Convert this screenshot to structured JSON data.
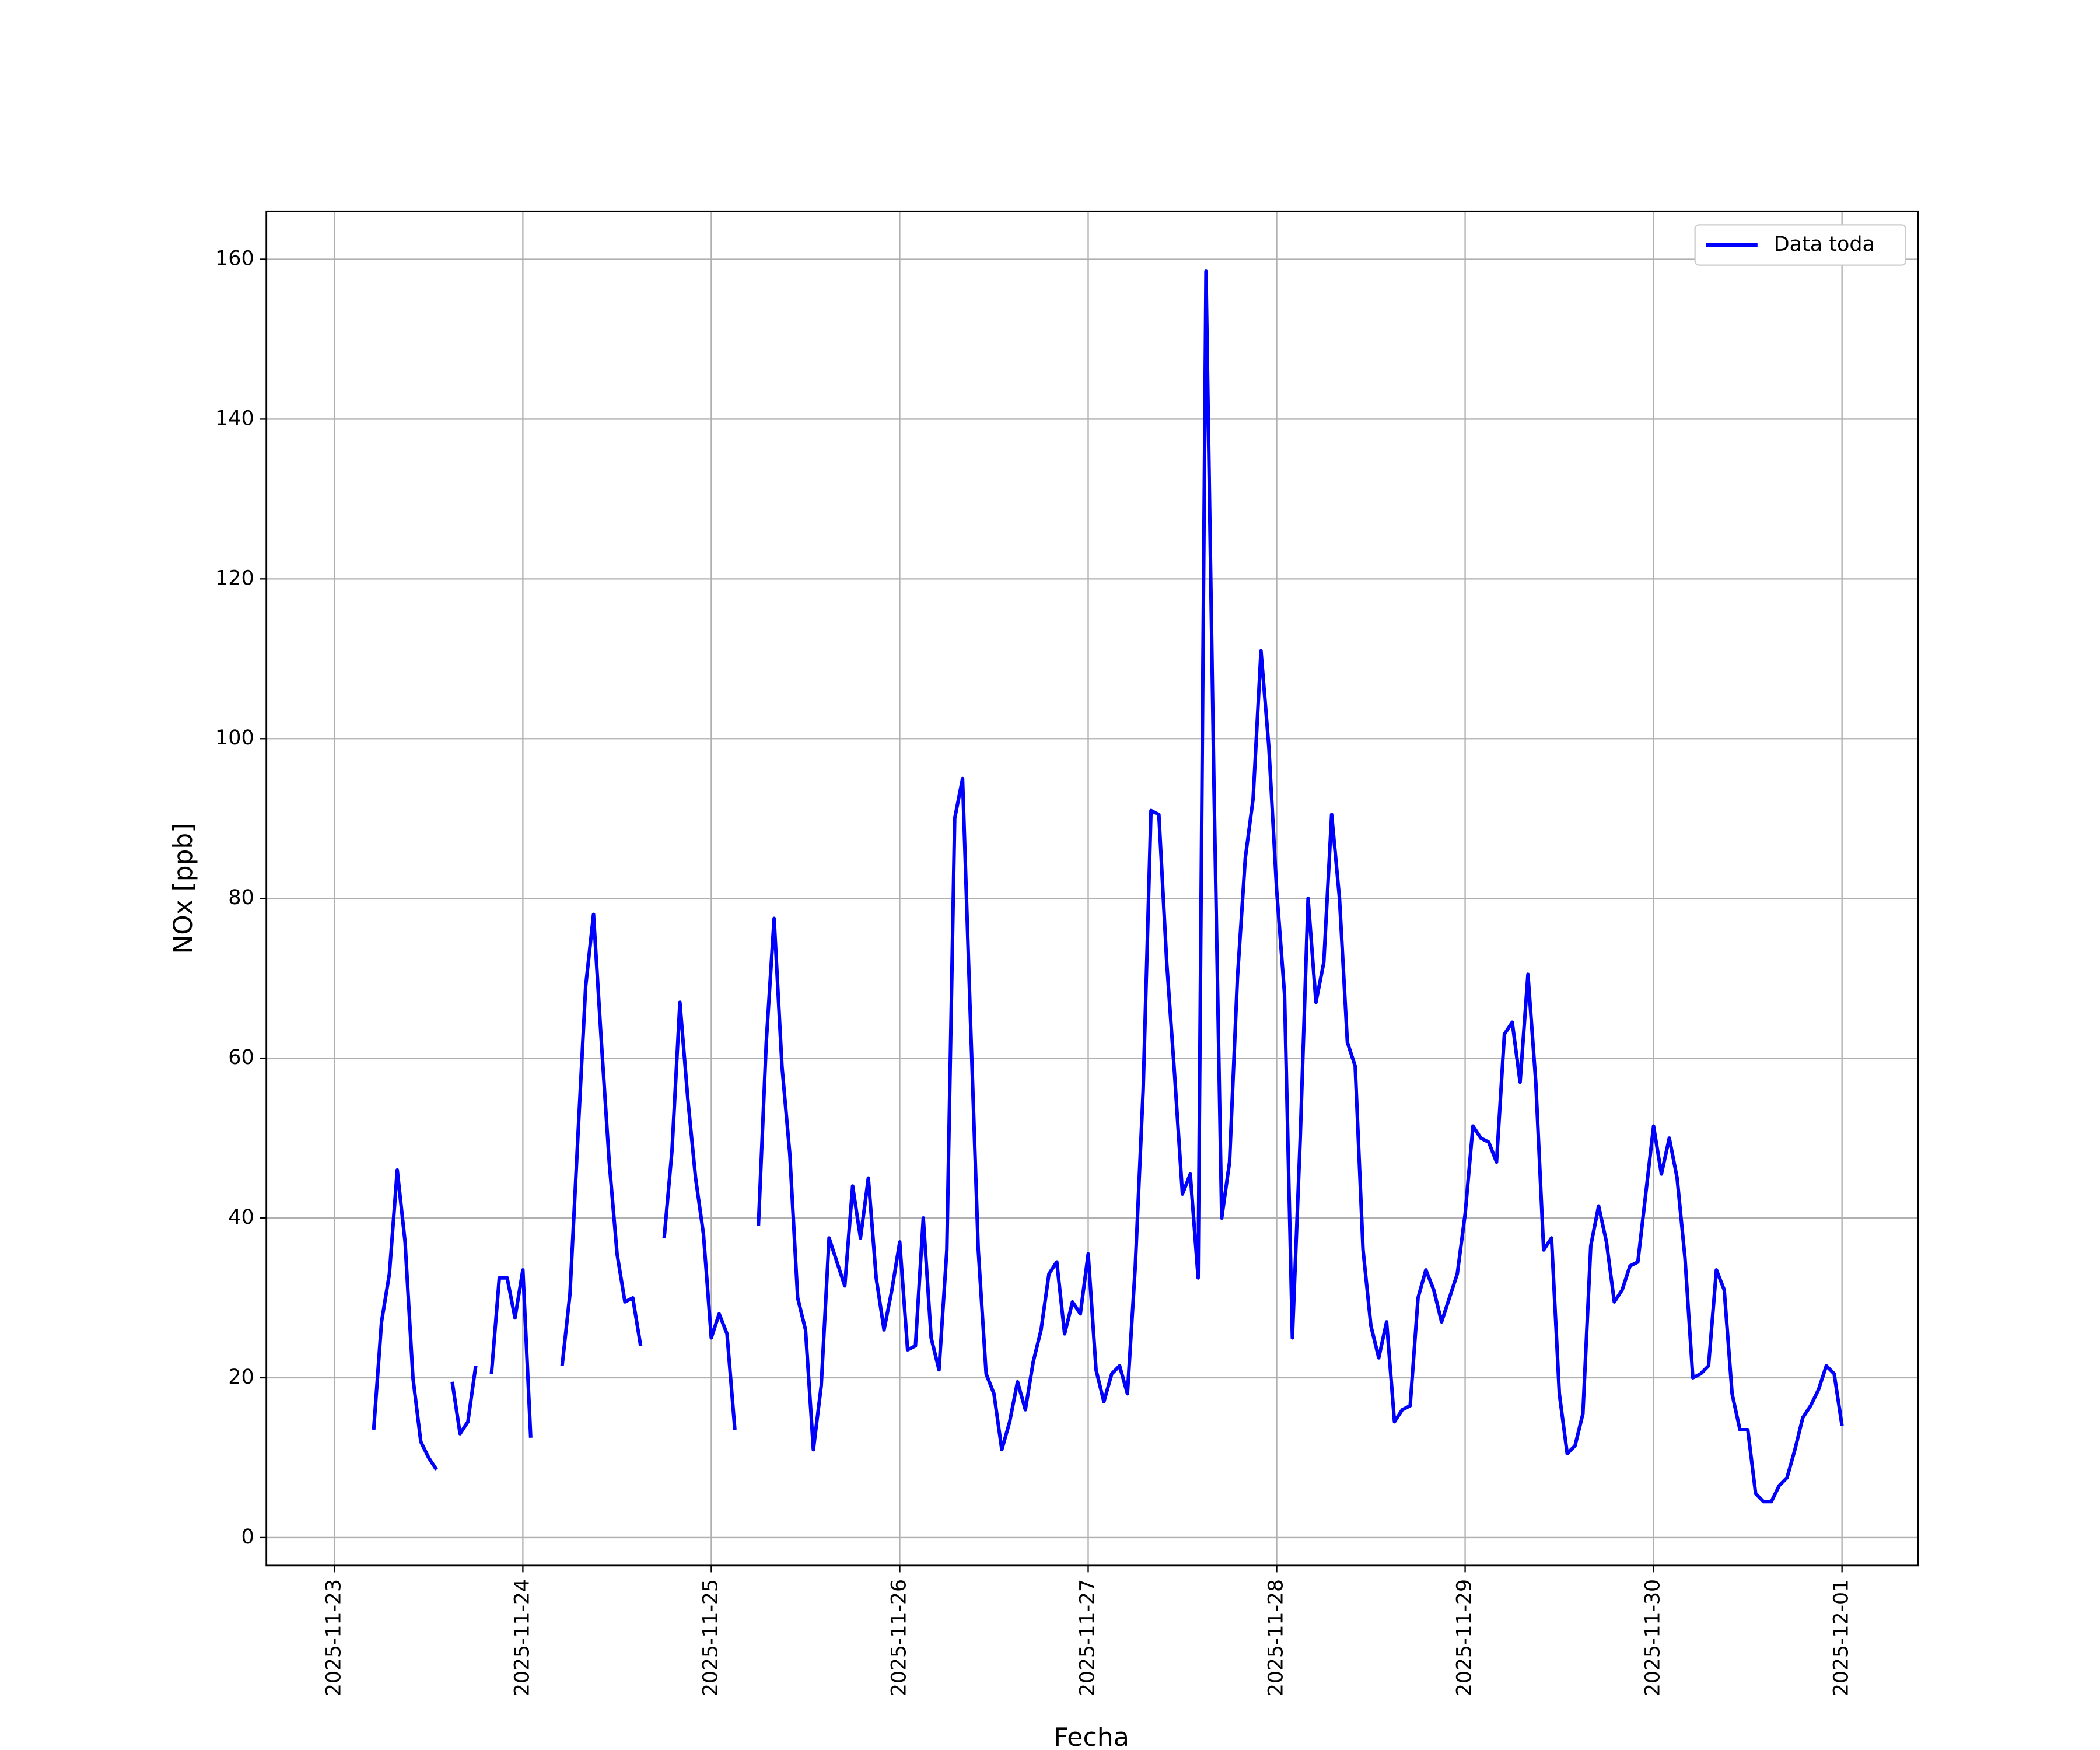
{
  "chart_data": {
    "type": "line",
    "xlabel": "Fecha",
    "ylabel": "NOx [ppb]",
    "x": [
      "2025-11-23 05:00",
      "2025-11-23 06:00",
      "2025-11-23 07:00",
      "2025-11-23 08:00",
      "2025-11-23 09:00",
      "2025-11-23 10:00",
      "2025-11-23 11:00",
      "2025-11-23 12:00",
      "2025-11-23 13:00",
      "2025-11-23 14:00",
      "2025-11-23 15:00",
      "2025-11-23 16:00",
      "2025-11-23 17:00",
      "2025-11-23 18:00",
      "2025-11-23 19:00",
      "2025-11-23 20:00",
      "2025-11-23 21:00",
      "2025-11-23 22:00",
      "2025-11-23 23:00",
      "2025-11-24 00:00",
      "2025-11-24 01:00",
      "2025-11-24 02:00",
      "2025-11-24 03:00",
      "2025-11-24 04:00",
      "2025-11-24 05:00",
      "2025-11-24 06:00",
      "2025-11-24 07:00",
      "2025-11-24 08:00",
      "2025-11-24 09:00",
      "2025-11-24 10:00",
      "2025-11-24 11:00",
      "2025-11-24 12:00",
      "2025-11-24 13:00",
      "2025-11-24 14:00",
      "2025-11-24 15:00",
      "2025-11-24 16:00",
      "2025-11-24 17:00",
      "2025-11-24 18:00",
      "2025-11-24 19:00",
      "2025-11-24 20:00",
      "2025-11-24 21:00",
      "2025-11-24 22:00",
      "2025-11-24 23:00",
      "2025-11-25 00:00",
      "2025-11-25 01:00",
      "2025-11-25 02:00",
      "2025-11-25 03:00",
      "2025-11-25 04:00",
      "2025-11-25 05:00",
      "2025-11-25 06:00",
      "2025-11-25 07:00",
      "2025-11-25 08:00",
      "2025-11-25 09:00",
      "2025-11-25 10:00",
      "2025-11-25 11:00",
      "2025-11-25 12:00",
      "2025-11-25 13:00",
      "2025-11-25 14:00",
      "2025-11-25 15:00",
      "2025-11-25 16:00",
      "2025-11-25 17:00",
      "2025-11-25 18:00",
      "2025-11-25 19:00",
      "2025-11-25 20:00",
      "2025-11-25 21:00",
      "2025-11-25 22:00",
      "2025-11-25 23:00",
      "2025-11-26 00:00",
      "2025-11-26 01:00",
      "2025-11-26 02:00",
      "2025-11-26 03:00",
      "2025-11-26 04:00",
      "2025-11-26 05:00",
      "2025-11-26 06:00",
      "2025-11-26 07:00",
      "2025-11-26 08:00",
      "2025-11-26 09:00",
      "2025-11-26 10:00",
      "2025-11-26 11:00",
      "2025-11-26 12:00",
      "2025-11-26 13:00",
      "2025-11-26 14:00",
      "2025-11-26 15:00",
      "2025-11-26 16:00",
      "2025-11-26 17:00",
      "2025-11-26 18:00",
      "2025-11-26 19:00",
      "2025-11-26 20:00",
      "2025-11-26 21:00",
      "2025-11-26 22:00",
      "2025-11-26 23:00",
      "2025-11-27 00:00",
      "2025-11-27 01:00",
      "2025-11-27 02:00",
      "2025-11-27 03:00",
      "2025-11-27 04:00",
      "2025-11-27 05:00",
      "2025-11-27 06:00",
      "2025-11-27 07:00",
      "2025-11-27 08:00",
      "2025-11-27 09:00",
      "2025-11-27 10:00",
      "2025-11-27 11:00",
      "2025-11-27 12:00",
      "2025-11-27 13:00",
      "2025-11-27 14:00",
      "2025-11-27 15:00",
      "2025-11-27 16:00",
      "2025-11-27 17:00",
      "2025-11-27 18:00",
      "2025-11-27 19:00",
      "2025-11-27 20:00",
      "2025-11-27 21:00",
      "2025-11-27 22:00",
      "2025-11-27 23:00",
      "2025-11-28 00:00",
      "2025-11-28 01:00",
      "2025-11-28 02:00",
      "2025-11-28 03:00",
      "2025-11-28 04:00",
      "2025-11-28 05:00",
      "2025-11-28 06:00",
      "2025-11-28 07:00",
      "2025-11-28 08:00",
      "2025-11-28 09:00",
      "2025-11-28 10:00",
      "2025-11-28 11:00",
      "2025-11-28 12:00",
      "2025-11-28 13:00",
      "2025-11-28 14:00",
      "2025-11-28 15:00",
      "2025-11-28 16:00",
      "2025-11-28 17:00",
      "2025-11-28 18:00",
      "2025-11-28 19:00",
      "2025-11-28 20:00",
      "2025-11-28 21:00",
      "2025-11-28 22:00",
      "2025-11-28 23:00",
      "2025-11-29 00:00",
      "2025-11-29 01:00",
      "2025-11-29 02:00",
      "2025-11-29 03:00",
      "2025-11-29 04:00",
      "2025-11-29 05:00",
      "2025-11-29 06:00",
      "2025-11-29 07:00",
      "2025-11-29 08:00",
      "2025-11-29 09:00",
      "2025-11-29 10:00",
      "2025-11-29 11:00",
      "2025-11-29 12:00",
      "2025-11-29 13:00",
      "2025-11-29 14:00",
      "2025-11-29 15:00",
      "2025-11-29 16:00",
      "2025-11-29 17:00",
      "2025-11-29 18:00",
      "2025-11-29 19:00",
      "2025-11-29 20:00",
      "2025-11-29 21:00",
      "2025-11-29 22:00",
      "2025-11-29 23:00",
      "2025-11-30 00:00",
      "2025-11-30 01:00",
      "2025-11-30 02:00",
      "2025-11-30 03:00",
      "2025-11-30 04:00",
      "2025-11-30 05:00",
      "2025-11-30 06:00",
      "2025-11-30 07:00",
      "2025-11-30 08:00",
      "2025-11-30 09:00",
      "2025-11-30 10:00",
      "2025-11-30 11:00",
      "2025-11-30 12:00",
      "2025-11-30 13:00",
      "2025-11-30 14:00",
      "2025-11-30 15:00",
      "2025-11-30 16:00",
      "2025-11-30 17:00",
      "2025-11-30 18:00",
      "2025-11-30 19:00",
      "2025-11-30 20:00",
      "2025-11-30 21:00",
      "2025-11-30 22:00",
      "2025-11-30 23:00",
      "2025-12-01 00:00"
    ],
    "series": [
      {
        "name": "Data toda",
        "color": "#0000ff",
        "values": [
          13.5,
          27,
          33,
          46,
          37,
          20,
          12,
          10,
          8.5,
          null,
          19.5,
          13,
          14.5,
          21.5,
          null,
          20.5,
          32.5,
          32.5,
          27.5,
          33.5,
          12.5,
          null,
          null,
          null,
          21.5,
          30.5,
          50,
          69,
          78,
          62,
          47,
          35.5,
          29.5,
          30,
          24,
          null,
          null,
          37.5,
          48.5,
          67,
          55,
          45,
          38,
          25,
          28,
          25.5,
          13.5,
          null,
          null,
          39,
          62,
          77.5,
          59,
          48,
          30,
          26,
          11,
          19,
          37.5,
          34.5,
          31.5,
          44,
          37.5,
          45,
          32.5,
          26,
          31,
          37,
          23.5,
          24,
          40,
          25,
          21,
          36,
          90,
          95,
          65,
          36,
          20.5,
          18,
          11,
          14.5,
          19.5,
          16,
          22,
          26,
          33,
          34.5,
          25.5,
          29.5,
          28,
          35.5,
          21,
          17,
          20.5,
          21.5,
          18,
          34,
          56,
          91,
          90.5,
          72,
          58,
          43,
          45.5,
          32.5,
          158.5,
          95,
          40,
          47,
          70,
          85,
          92.5,
          111,
          99,
          81,
          68,
          25,
          50,
          80,
          67,
          72,
          90.5,
          80,
          62,
          59,
          36,
          26.5,
          22.5,
          27,
          14.5,
          16,
          16.5,
          30,
          33.5,
          31,
          27,
          30,
          33,
          40.5,
          51.5,
          50,
          49.5,
          47,
          63,
          64.5,
          57,
          70.5,
          57,
          36,
          37.5,
          18,
          10.5,
          11.5,
          15.5,
          36.5,
          41.5,
          37,
          29.5,
          31,
          34,
          34.5,
          43,
          51.5,
          45.5,
          50,
          45,
          35,
          20,
          20.5,
          21.5,
          33.5,
          31,
          18,
          13.5,
          13.5,
          5.5,
          4.5,
          4.5,
          6.5,
          7.5,
          11,
          15,
          16.5,
          18.5,
          21.5,
          20.5,
          14
        ]
      }
    ],
    "xlim": [
      "2025-11-22 15:20",
      "2025-12-01 09:40"
    ],
    "xticks": [
      "2025-11-23",
      "2025-11-24",
      "2025-11-25",
      "2025-11-26",
      "2025-11-27",
      "2025-11-28",
      "2025-11-29",
      "2025-11-30",
      "2025-12-01"
    ],
    "ylim": [
      -3.5,
      166
    ],
    "yticks": [
      0,
      20,
      40,
      60,
      80,
      100,
      120,
      140,
      160
    ],
    "grid": true,
    "legend": "upper right"
  }
}
